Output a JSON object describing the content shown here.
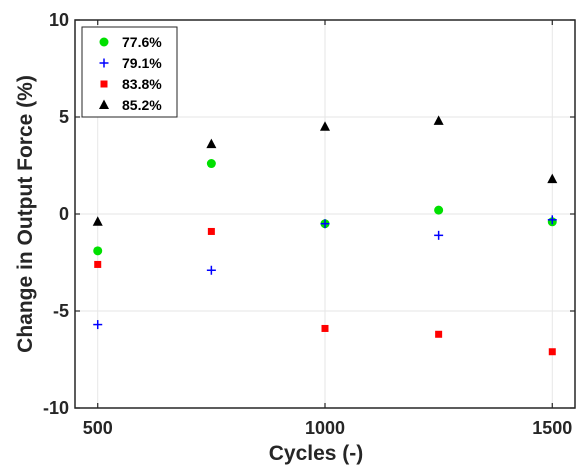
{
  "chart_data": {
    "type": "scatter",
    "title": "",
    "xlabel": "Cycles (-)",
    "ylabel": "Change in Output Force (%)",
    "xlim": [
      450,
      1550
    ],
    "ylim": [
      -10,
      10
    ],
    "xticks": [
      500,
      1000,
      1500
    ],
    "yticks": [
      10,
      5,
      0,
      -5,
      -10
    ],
    "xtick_labels": [
      "500",
      "1000",
      "1500"
    ],
    "ytick_labels": [
      "10",
      "5",
      "0",
      "-5",
      "-10"
    ],
    "grid": true,
    "legend_position": "top-left",
    "x": [
      500,
      750,
      1000,
      1250,
      1500
    ],
    "series": [
      {
        "name": "77.6%",
        "marker": "circle",
        "color": "#00e000",
        "values": [
          -1.9,
          2.6,
          -0.5,
          0.2,
          -0.4
        ]
      },
      {
        "name": "79.1%",
        "marker": "plus",
        "color": "#0000ff",
        "values": [
          -5.7,
          -2.9,
          -0.5,
          -1.1,
          -0.3
        ]
      },
      {
        "name": "83.8%",
        "marker": "square",
        "color": "#ff0000",
        "values": [
          -2.6,
          -0.9,
          -5.9,
          -6.2,
          -7.1
        ]
      },
      {
        "name": "85.2%",
        "marker": "triangle",
        "color": "#000000",
        "values": [
          -0.4,
          3.6,
          4.5,
          4.8,
          1.8
        ]
      }
    ]
  }
}
